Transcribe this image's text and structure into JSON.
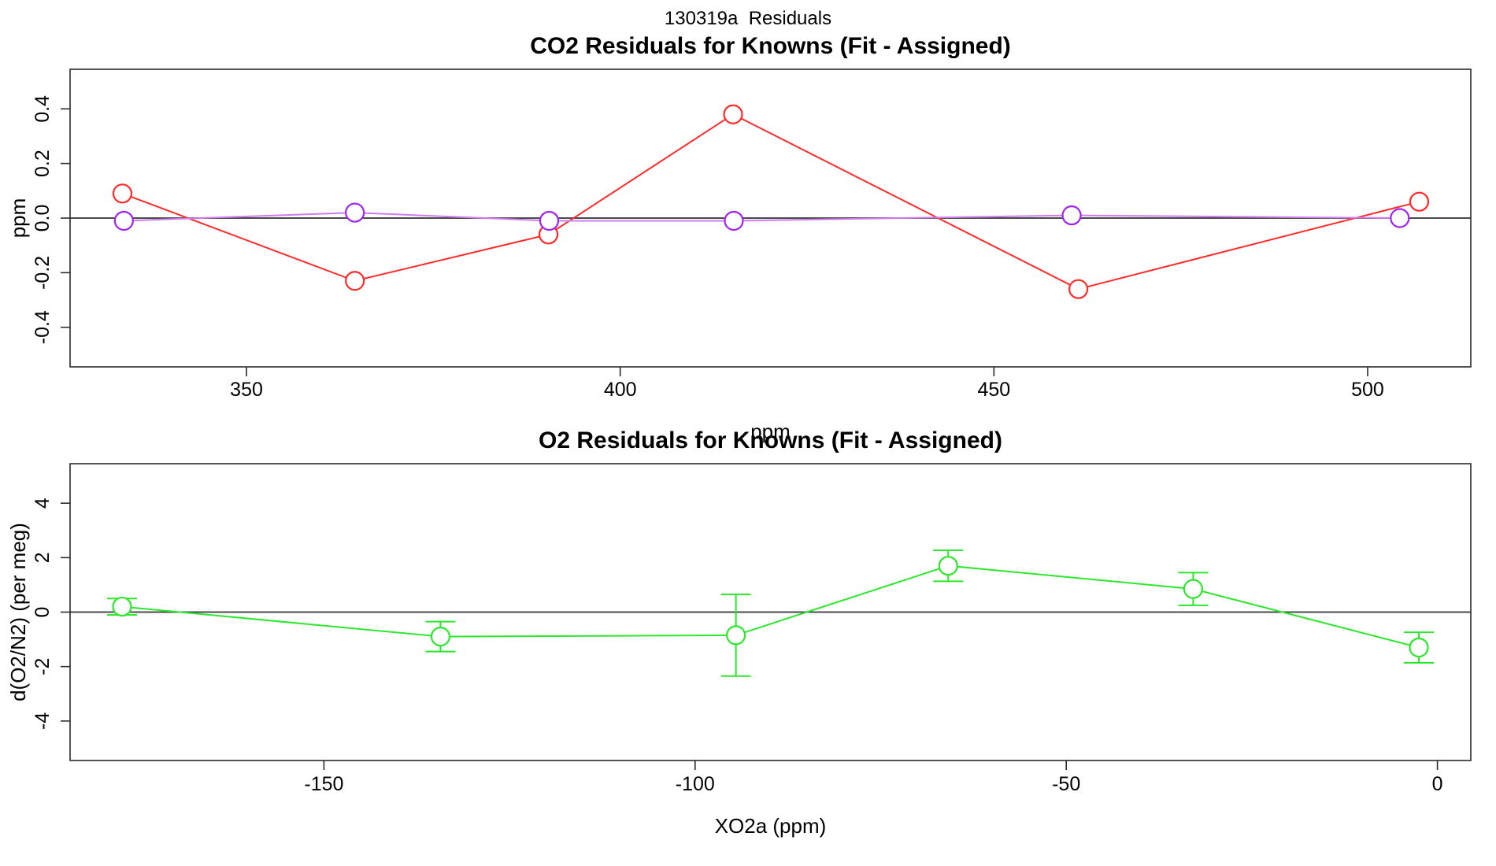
{
  "page": {
    "title": "130319a  Residuals",
    "background": "#ffffff"
  },
  "colors": {
    "red_series": "#ff2b2b",
    "purple_marker": "#a124f2",
    "purple_line": "#cf7cef",
    "green_series": "#2be82b",
    "axis": "#2b2b2b",
    "zero_line": "#4a4a4a"
  },
  "chart_data": [
    {
      "type": "line",
      "name": "co2-residuals",
      "title": "CO2 Residuals for Knowns (Fit - Assigned)",
      "xlabel": "ppm",
      "ylabel": "ppm",
      "xlim": [
        326.4,
        513.8
      ],
      "ylim": [
        -0.545,
        0.545
      ],
      "xticks": [
        350,
        400,
        450,
        500
      ],
      "xtick_labels": [
        "350",
        "400",
        "450",
        "500"
      ],
      "yticks": [
        -0.4,
        -0.2,
        0.0,
        0.2,
        0.4
      ],
      "ytick_labels": [
        "-0.4",
        "-0.2",
        "0.0",
        "0.2",
        "0.4"
      ],
      "hline": 0,
      "grid": false,
      "legend": "none",
      "series": [
        {
          "name": "co2-residual-red",
          "color": "#ff2b2b",
          "marker": "open-circle",
          "x": [
            333.4,
            364.5,
            390.4,
            415.1,
            461.3,
            506.9
          ],
          "y": [
            0.09,
            -0.23,
            -0.06,
            0.38,
            -0.26,
            0.06
          ]
        },
        {
          "name": "co2-residual-purple",
          "color": "#a124f2",
          "line_color": "#cf7cef",
          "marker": "open-circle",
          "x": [
            333.6,
            364.5,
            390.5,
            415.2,
            460.4,
            504.3
          ],
          "y": [
            -0.01,
            0.02,
            -0.01,
            -0.01,
            0.01,
            0.0
          ]
        }
      ]
    },
    {
      "type": "line",
      "name": "o2-residuals",
      "title": "O2 Residuals for Knowns (Fit - Assigned)",
      "xlabel": "XO2a (ppm)",
      "ylabel": "d(O2/N2) (per meg)",
      "xlim": [
        -184.2,
        4.5
      ],
      "ylim": [
        -5.45,
        5.45
      ],
      "xticks": [
        -150,
        -100,
        -50,
        0
      ],
      "xtick_labels": [
        "-150",
        "-100",
        "-50",
        "0"
      ],
      "yticks": [
        -4,
        -2,
        0,
        2,
        4
      ],
      "ytick_labels": [
        "-4",
        "-2",
        "0",
        "2",
        "4"
      ],
      "hline": 0,
      "grid": false,
      "legend": "none",
      "series": [
        {
          "name": "o2-residual-green",
          "color": "#2be82b",
          "marker": "open-circle",
          "error_bars": true,
          "x": [
            -177.2,
            -134.3,
            -94.5,
            -65.9,
            -32.9,
            -2.5
          ],
          "y": [
            0.2,
            -0.9,
            -0.85,
            1.7,
            0.85,
            -1.3
          ],
          "err": [
            0.3,
            0.55,
            1.5,
            0.57,
            0.6,
            0.56
          ]
        }
      ]
    }
  ]
}
